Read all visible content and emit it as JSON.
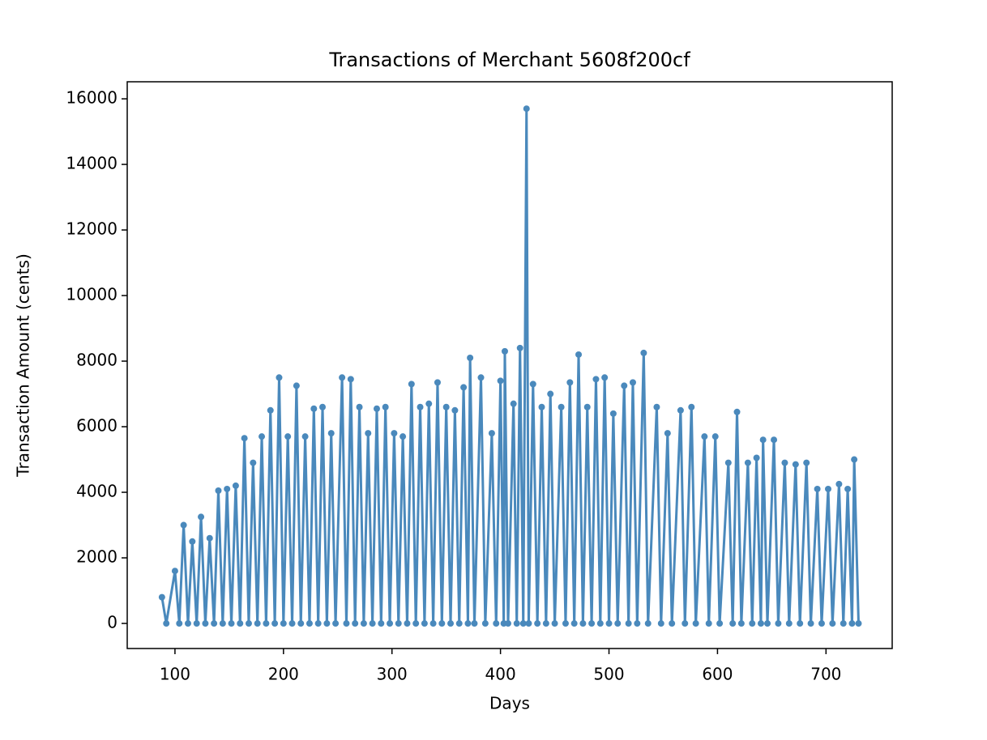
{
  "chart_data": {
    "type": "line",
    "title": "Transactions of Merchant 5608f200cf",
    "xlabel": "Days",
    "ylabel": "Transaction Amount (cents)",
    "x": [
      88,
      92,
      100,
      104,
      108,
      112,
      116,
      120,
      124,
      128,
      132,
      136,
      140,
      144,
      148,
      152,
      156,
      160,
      164,
      168,
      172,
      176,
      180,
      184,
      188,
      192,
      196,
      200,
      204,
      208,
      212,
      216,
      220,
      224,
      228,
      232,
      236,
      240,
      244,
      248,
      254,
      258,
      262,
      266,
      270,
      274,
      278,
      282,
      286,
      290,
      294,
      298,
      302,
      306,
      310,
      314,
      318,
      322,
      326,
      330,
      334,
      338,
      342,
      346,
      350,
      354,
      358,
      362,
      366,
      370,
      372,
      376,
      382,
      386,
      392,
      396,
      400,
      403,
      404,
      407,
      412,
      415,
      418,
      421,
      424,
      426,
      430,
      434,
      438,
      442,
      446,
      450,
      456,
      460,
      464,
      468,
      472,
      476,
      480,
      484,
      488,
      492,
      496,
      500,
      504,
      508,
      514,
      518,
      522,
      526,
      532,
      536,
      544,
      548,
      554,
      558,
      566,
      570,
      576,
      580,
      588,
      592,
      598,
      602,
      610,
      614,
      618,
      622,
      628,
      632,
      636,
      640,
      642,
      646,
      652,
      656,
      662,
      666,
      672,
      676,
      682,
      686,
      692,
      696,
      702,
      706,
      712,
      716,
      720,
      724,
      726,
      730
    ],
    "series": [
      {
        "name": "Transactions",
        "color": "#4a89bc",
        "values": [
          800,
          0,
          1600,
          0,
          3000,
          0,
          2500,
          0,
          3250,
          0,
          2600,
          0,
          4050,
          0,
          4100,
          0,
          4200,
          0,
          5650,
          0,
          4900,
          0,
          5700,
          0,
          6500,
          0,
          7500,
          0,
          5700,
          0,
          7250,
          0,
          5700,
          0,
          6550,
          0,
          6600,
          0,
          5800,
          0,
          7500,
          0,
          7450,
          0,
          6600,
          0,
          5800,
          0,
          6550,
          0,
          6600,
          0,
          5800,
          0,
          5700,
          0,
          7300,
          0,
          6600,
          0,
          6700,
          0,
          7350,
          0,
          6600,
          0,
          6500,
          0,
          7200,
          0,
          8100,
          0,
          7500,
          0,
          5800,
          0,
          7400,
          0,
          8300,
          0,
          6700,
          0,
          8400,
          0,
          15700,
          0,
          7300,
          0,
          6600,
          0,
          7000,
          0,
          6600,
          0,
          7350,
          0,
          8200,
          0,
          6600,
          0,
          7450,
          0,
          7500,
          0,
          6400,
          0,
          7250,
          0,
          7350,
          0,
          8250,
          0,
          6600,
          0,
          5800,
          0,
          6500,
          0,
          6600,
          0,
          5700,
          0,
          5700,
          0,
          4900,
          0,
          6450,
          0,
          4900,
          0,
          5050,
          0,
          5600,
          0,
          5600,
          0,
          4900,
          0,
          4850,
          0,
          4900,
          0,
          4100,
          0,
          4100,
          0,
          4250,
          0,
          4100,
          0,
          5000,
          0
        ]
      }
    ],
    "xlim": [
      56,
      761
    ],
    "ylim": [
      -765,
      16520
    ],
    "xticks": [
      100,
      200,
      300,
      400,
      500,
      600,
      700
    ],
    "yticks": [
      0,
      2000,
      4000,
      6000,
      8000,
      10000,
      12000,
      14000,
      16000
    ],
    "grid": false
  }
}
